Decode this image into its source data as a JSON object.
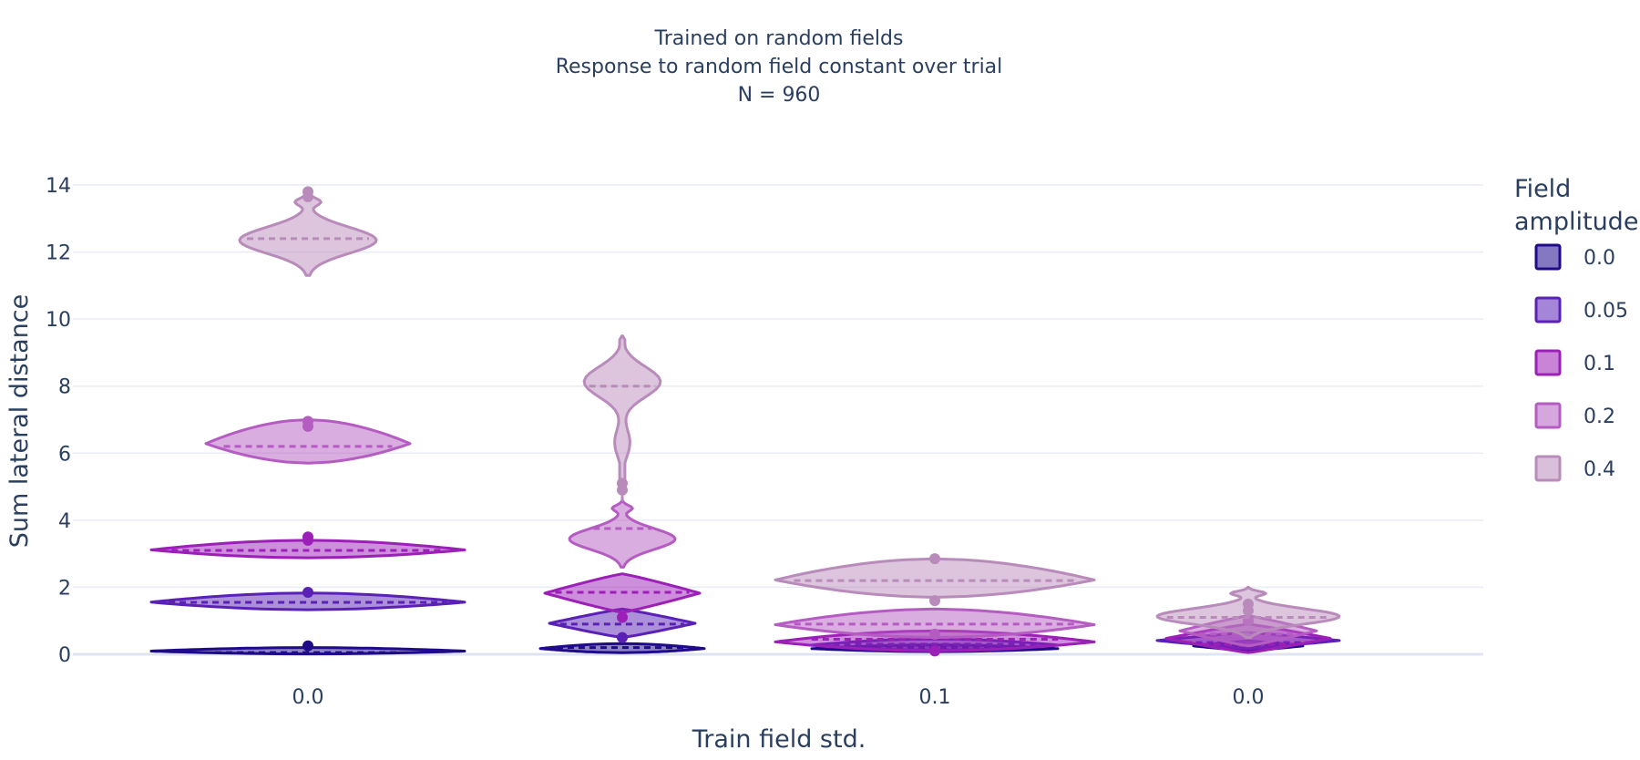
{
  "chart_data": {
    "type": "violin",
    "title_lines": [
      "Trained on random fields",
      "Response to random field constant over trial",
      "N = 960"
    ],
    "xlabel": "Train field std.",
    "ylabel": "Sum lateral distance",
    "ylim": [
      -0.6,
      15.2
    ],
    "yticks": [
      0,
      2,
      4,
      6,
      8,
      10,
      12,
      14
    ],
    "grid": true,
    "legend_position": "right",
    "legend_title": "Field amplitude",
    "categories": [
      "0.0",
      "",
      "0.1",
      "0.0"
    ],
    "series": [
      {
        "name": "0.0",
        "color": "#1f0a8c",
        "violins": [
          {
            "category": 0,
            "median": 0.05,
            "outliers": [
              0.25
            ]
          },
          {
            "category": 1,
            "median": 0.2,
            "outliers": []
          },
          {
            "category": 2,
            "median": 0.2,
            "outliers": []
          },
          {
            "category": 3,
            "median": 0.25,
            "outliers": []
          }
        ]
      },
      {
        "name": "0.05",
        "color": "#5b21b6",
        "violins": [
          {
            "category": 0,
            "median": 1.55,
            "outliers": [
              1.85
            ]
          },
          {
            "category": 1,
            "median": 0.9,
            "outliers": [
              0.5
            ]
          },
          {
            "category": 2,
            "median": 0.3,
            "outliers": []
          },
          {
            "category": 3,
            "median": 0.35,
            "outliers": []
          }
        ]
      },
      {
        "name": "0.1",
        "color": "#9c1fb8",
        "violins": [
          {
            "category": 0,
            "median": 3.1,
            "outliers": [
              3.4,
              3.5
            ]
          },
          {
            "category": 1,
            "median": 1.85,
            "outliers": [
              1.1
            ]
          },
          {
            "category": 2,
            "median": 0.45,
            "outliers": [
              0.1
            ]
          },
          {
            "category": 3,
            "median": 0.3,
            "outliers": []
          }
        ]
      },
      {
        "name": "0.2",
        "color": "#b55cc2",
        "violins": [
          {
            "category": 0,
            "median": 6.2,
            "outliers": [
              6.8,
              6.95
            ]
          },
          {
            "category": 1,
            "median": 3.75,
            "outliers": []
          },
          {
            "category": 2,
            "median": 0.9,
            "outliers": [
              0.6
            ]
          },
          {
            "category": 3,
            "median": 0.6,
            "outliers": [
              1.0
            ]
          }
        ]
      },
      {
        "name": "0.4",
        "color": "#b98bbb",
        "violins": [
          {
            "category": 0,
            "median": 12.4,
            "outliers": [
              13.65,
              13.8
            ]
          },
          {
            "category": 1,
            "median": 8.0,
            "outliers": [
              4.9,
              5.1
            ]
          },
          {
            "category": 2,
            "median": 2.2,
            "outliers": [
              2.85,
              1.6
            ]
          },
          {
            "category": 3,
            "median": 1.1,
            "outliers": [
              1.5,
              1.3
            ]
          }
        ]
      }
    ]
  }
}
